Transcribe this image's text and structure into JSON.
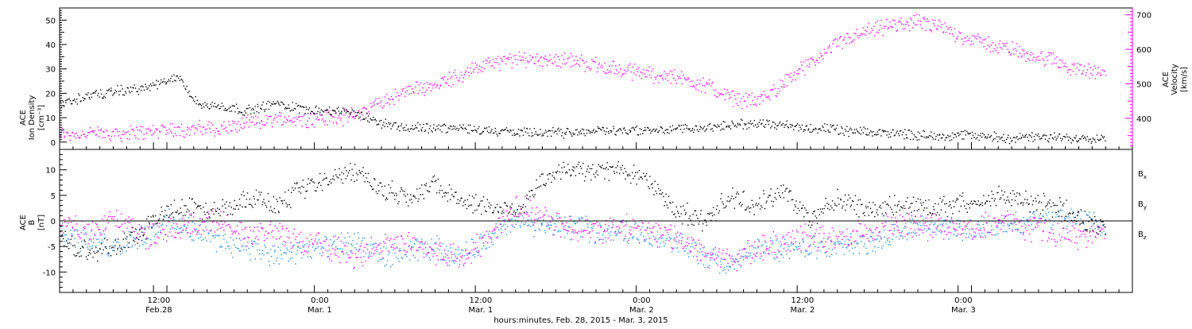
{
  "chart_data": [
    {
      "type": "scatter",
      "panel": "top",
      "x_range_hours": [
        0,
        80
      ],
      "ylabel_left_lines": [
        "ACE",
        "Ion Density",
        "[cm⁻³]"
      ],
      "ylabel_right_lines": [
        "ACE",
        "Velocity",
        "[km/s]"
      ],
      "ylim_left": [
        -3,
        55
      ],
      "ylim_right": [
        310,
        720
      ],
      "yticks_left": [
        0,
        10,
        20,
        30,
        40,
        50
      ],
      "yticks_right": [
        400,
        500,
        600,
        700
      ],
      "colors": {
        "density": "#000000",
        "velocity": "#ff00ff"
      },
      "series": [
        {
          "axis": "left",
          "color": "#000000",
          "t": [
            0,
            2,
            4,
            6,
            8,
            9,
            10,
            11,
            12,
            14,
            16,
            18,
            20,
            22,
            24,
            26,
            28,
            30,
            32,
            34,
            36,
            38,
            40,
            44,
            48,
            52,
            54,
            56,
            58,
            60,
            62,
            64,
            66,
            68,
            70,
            72,
            74,
            76,
            78
          ],
          "values": [
            16,
            19,
            21,
            22,
            25,
            27,
            17,
            15,
            15,
            13,
            16,
            14,
            13,
            12,
            8,
            6,
            6,
            6,
            5,
            4,
            4,
            4,
            5,
            5,
            6,
            8,
            7,
            6,
            5,
            4,
            4,
            3,
            3,
            3,
            2,
            2,
            2,
            2,
            2
          ]
        },
        {
          "axis": "right",
          "color": "#ff00ff",
          "t": [
            0,
            2,
            4,
            6,
            8,
            10,
            12,
            14,
            16,
            18,
            20,
            22,
            24,
            26,
            28,
            30,
            32,
            34,
            36,
            38,
            40,
            42,
            44,
            46,
            48,
            50,
            52,
            54,
            56,
            58,
            60,
            62,
            64,
            66,
            68,
            70,
            72,
            74,
            76,
            78
          ],
          "values": [
            355,
            357,
            358,
            360,
            370,
            370,
            372,
            385,
            400,
            400,
            400,
            410,
            450,
            480,
            500,
            530,
            560,
            570,
            575,
            570,
            555,
            540,
            530,
            520,
            500,
            460,
            450,
            505,
            560,
            620,
            650,
            670,
            680,
            660,
            630,
            610,
            590,
            570,
            540,
            530
          ]
        }
      ]
    },
    {
      "type": "scatter",
      "panel": "bottom",
      "x_range_hours": [
        0,
        80
      ],
      "ylabel_lines": [
        "ACE",
        "B",
        "[nT]"
      ],
      "ylim": [
        -14,
        14
      ],
      "yticks": [
        -10,
        -5,
        0,
        5,
        10
      ],
      "legend_labels": [
        "B",
        "B",
        "B"
      ],
      "legend_subscripts": [
        "x",
        "y",
        "z"
      ],
      "colors": {
        "bx": "#000000",
        "by": "#1e8fe6",
        "bz": "#ff00ff"
      },
      "series": [
        {
          "name": "Bx",
          "color": "#000000",
          "t": [
            0,
            2,
            4,
            6,
            8,
            10,
            12,
            14,
            16,
            18,
            20,
            22,
            24,
            26,
            28,
            30,
            32,
            34,
            36,
            38,
            40,
            42,
            44,
            46,
            48,
            50,
            52,
            54,
            56,
            58,
            60,
            62,
            64,
            66,
            68,
            70,
            72,
            74,
            76,
            78
          ],
          "values": [
            -3,
            -6,
            -5,
            -2,
            2,
            3,
            2,
            5,
            3,
            6,
            8,
            10,
            6,
            5,
            7,
            4,
            3,
            2,
            8,
            10,
            10,
            10,
            8,
            2,
            0,
            5,
            3,
            6,
            0,
            5,
            2,
            3,
            3,
            3,
            4,
            5,
            4,
            3,
            1,
            -2
          ]
        },
        {
          "name": "By",
          "color": "#1e8fe6",
          "t": [
            0,
            2,
            4,
            6,
            8,
            10,
            12,
            14,
            16,
            18,
            20,
            22,
            24,
            26,
            28,
            30,
            32,
            34,
            36,
            38,
            40,
            42,
            44,
            46,
            48,
            50,
            52,
            54,
            56,
            58,
            60,
            62,
            64,
            66,
            68,
            70,
            72,
            74,
            76,
            78
          ],
          "values": [
            -2,
            -4,
            -5,
            -3,
            0,
            -2,
            -4,
            -5,
            -7,
            -6,
            -5,
            -4,
            -7,
            -6,
            -5,
            -7,
            -3,
            0,
            -1,
            -1,
            -2,
            -2,
            -3,
            -4,
            -7,
            -9,
            -5,
            -6,
            -5,
            -5,
            -4,
            -3,
            -1,
            -1,
            -2,
            -1,
            0,
            1,
            0,
            -1
          ]
        },
        {
          "name": "Bz",
          "color": "#ff00ff",
          "t": [
            0,
            2,
            4,
            6,
            8,
            10,
            12,
            14,
            16,
            18,
            20,
            22,
            24,
            26,
            28,
            30,
            32,
            34,
            36,
            38,
            40,
            42,
            44,
            46,
            48,
            50,
            52,
            54,
            56,
            58,
            60,
            62,
            64,
            66,
            68,
            70,
            72,
            74,
            76,
            78
          ],
          "values": [
            0,
            -2,
            1,
            -3,
            -2,
            -1,
            0,
            -3,
            -2,
            -4,
            -5,
            -7,
            -5,
            -4,
            -6,
            -7,
            -3,
            3,
            1,
            -1,
            -2,
            -1,
            -2,
            -3,
            -6,
            -8,
            -5,
            -4,
            -3,
            -4,
            -2,
            -1,
            -1,
            -1,
            -2,
            0,
            -1,
            -2,
            -3,
            -2
          ]
        }
      ]
    }
  ],
  "time_axis": {
    "ticks_hours": [
      0,
      6,
      12,
      18,
      24,
      30,
      36,
      42,
      48,
      54,
      60,
      66,
      72,
      78
    ],
    "labels": [
      {
        "hour": 7.4,
        "time": "12:00",
        "date": "Feb.28"
      },
      {
        "hour": 19.4,
        "time": "0:00",
        "date": "Mar. 1"
      },
      {
        "hour": 31.4,
        "time": "12:00",
        "date": "Mar. 1"
      },
      {
        "hour": 43.4,
        "time": "0:00",
        "date": "Mar. 2"
      },
      {
        "hour": 55.4,
        "time": "12:00",
        "date": "Mar. 2"
      },
      {
        "hour": 67.4,
        "time": "0:00",
        "date": "Mar. 3"
      }
    ],
    "xlabel": "hours:minutes, Feb. 28, 2015 - Mar.  3, 2015"
  }
}
